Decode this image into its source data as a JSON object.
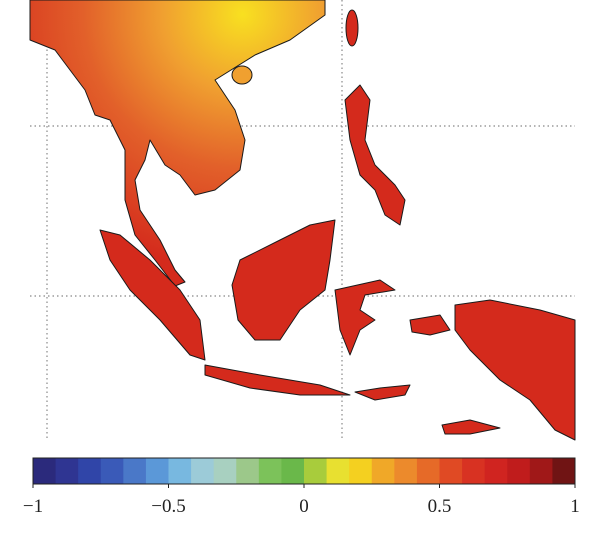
{
  "colorbar": {
    "lim": [
      -1,
      1
    ],
    "ticks": [
      {
        "value": -1,
        "label": "−1"
      },
      {
        "value": -0.5,
        "label": "−0.5"
      },
      0,
      0.5,
      1
    ],
    "colormap": [
      "#2b2a7c",
      "#2f3592",
      "#3045a8",
      "#3a5ab8",
      "#4a78c8",
      "#5b98d8",
      "#78b8e0",
      "#9ccbd8",
      "#a8d0c0",
      "#9cc88a",
      "#7cc25a",
      "#6ab84a",
      "#a8cc3c",
      "#e8e030",
      "#f4d020",
      "#f0a828",
      "#ec8a2c",
      "#e66a28",
      "#e04a24",
      "#d83222",
      "#d02420",
      "#c01c1c",
      "#a01818",
      "#701414"
    ]
  }
}
